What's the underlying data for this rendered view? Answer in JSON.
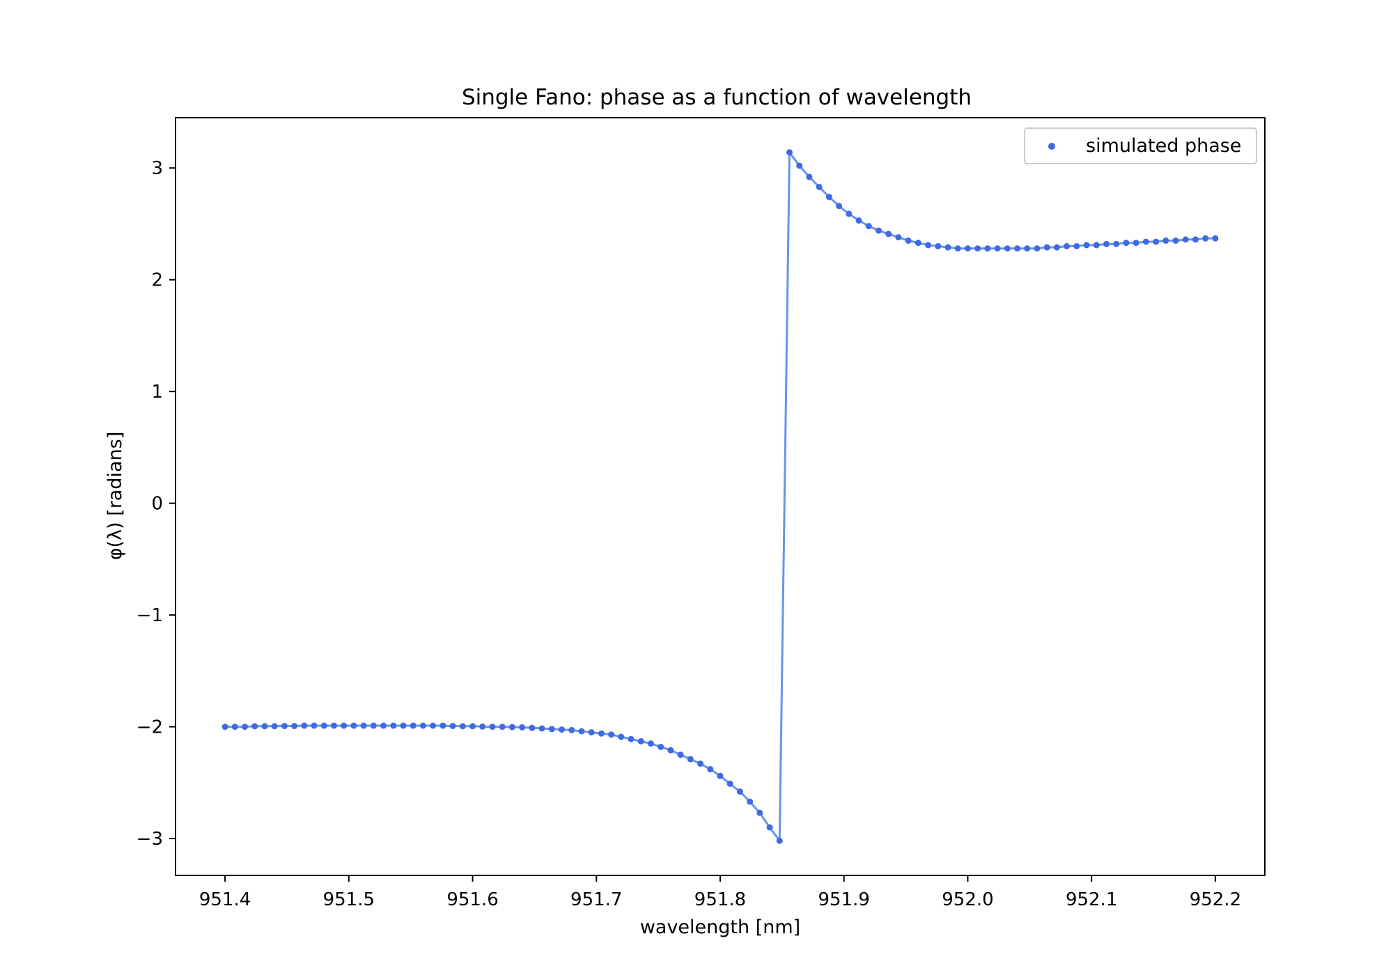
{
  "chart_data": {
    "type": "scatter",
    "title": "Single Fano: phase as a function of wavelength",
    "xlabel": "wavelength [nm]",
    "ylabel": "φ(λ) [radians]",
    "xlim": [
      951.36,
      952.24
    ],
    "ylim": [
      -3.33,
      3.45
    ],
    "x_ticks": [
      951.4,
      951.5,
      951.6,
      951.7,
      951.8,
      951.9,
      952.0,
      952.1,
      952.2
    ],
    "x_tick_labels": [
      "951.4",
      "951.5",
      "951.6",
      "951.7",
      "951.8",
      "951.9",
      "952.0",
      "952.1",
      "952.2"
    ],
    "y_ticks": [
      -3,
      -2,
      -1,
      0,
      1,
      2,
      3
    ],
    "y_tick_labels": [
      "−3",
      "−2",
      "−1",
      "0",
      "1",
      "2",
      "3"
    ],
    "grid": false,
    "legend": {
      "location": "upper right",
      "entries": [
        "simulated phase"
      ]
    },
    "colors": {
      "line": "#6495ed",
      "marker": "#4169e1"
    },
    "series": [
      {
        "name": "simulated phase",
        "x": [
          951.4,
          951.408,
          951.416,
          951.424,
          951.432,
          951.44,
          951.448,
          951.456,
          951.464,
          951.472,
          951.48,
          951.488,
          951.496,
          951.504,
          951.512,
          951.52,
          951.528,
          951.536,
          951.544,
          951.552,
          951.56,
          951.568,
          951.576,
          951.584,
          951.592,
          951.6,
          951.608,
          951.616,
          951.624,
          951.632,
          951.64,
          951.648,
          951.656,
          951.664,
          951.672,
          951.68,
          951.688,
          951.696,
          951.704,
          951.712,
          951.72,
          951.728,
          951.736,
          951.744,
          951.752,
          951.76,
          951.768,
          951.776,
          951.784,
          951.792,
          951.8,
          951.808,
          951.816,
          951.824,
          951.832,
          951.84,
          951.848,
          951.856,
          951.864,
          951.872,
          951.88,
          951.888,
          951.896,
          951.904,
          951.912,
          951.92,
          951.928,
          951.936,
          951.944,
          951.952,
          951.96,
          951.968,
          951.976,
          951.984,
          951.992,
          952.0,
          952.008,
          952.016,
          952.024,
          952.032,
          952.04,
          952.048,
          952.056,
          952.064,
          952.072,
          952.08,
          952.088,
          952.096,
          952.104,
          952.112,
          952.12,
          952.128,
          952.136,
          952.144,
          952.152,
          952.16,
          952.168,
          952.176,
          952.184,
          952.192,
          952.2
        ],
        "y": [
          -2.0,
          -2.0,
          -2.0,
          -1.995,
          -1.995,
          -1.995,
          -1.993,
          -1.993,
          -1.99,
          -1.99,
          -1.99,
          -1.99,
          -1.99,
          -1.99,
          -1.99,
          -1.99,
          -1.99,
          -1.99,
          -1.99,
          -1.99,
          -1.99,
          -1.99,
          -1.99,
          -1.993,
          -1.995,
          -1.995,
          -1.998,
          -2.0,
          -2.0,
          -2.003,
          -2.005,
          -2.01,
          -2.015,
          -2.02,
          -2.025,
          -2.03,
          -2.04,
          -2.05,
          -2.06,
          -2.07,
          -2.09,
          -2.11,
          -2.13,
          -2.15,
          -2.18,
          -2.21,
          -2.25,
          -2.29,
          -2.33,
          -2.38,
          -2.44,
          -2.51,
          -2.58,
          -2.67,
          -2.77,
          -2.9,
          -3.02,
          3.14,
          3.02,
          2.92,
          2.83,
          2.74,
          2.66,
          2.59,
          2.53,
          2.48,
          2.44,
          2.41,
          2.38,
          2.35,
          2.33,
          2.31,
          2.3,
          2.29,
          2.28,
          2.28,
          2.28,
          2.28,
          2.28,
          2.28,
          2.28,
          2.28,
          2.28,
          2.29,
          2.29,
          2.3,
          2.3,
          2.31,
          2.31,
          2.32,
          2.32,
          2.33,
          2.33,
          2.34,
          2.34,
          2.35,
          2.35,
          2.36,
          2.36,
          2.37,
          2.37
        ]
      }
    ]
  }
}
